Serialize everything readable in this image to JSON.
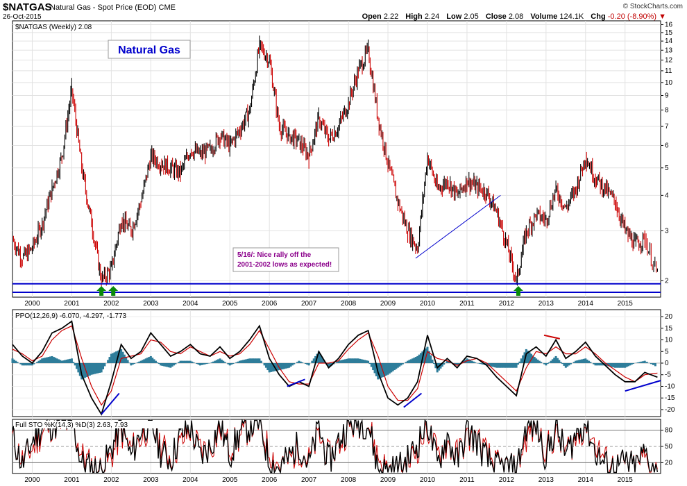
{
  "header": {
    "symbol": "$NATGAS",
    "description": "Natural Gas - Spot Price (EOD)",
    "exchange": "CME",
    "date": "26-Oct-2015",
    "brand": "© StockCharts.com",
    "open_label": "Open",
    "open": "2.22",
    "high_label": "High",
    "high": "2.24",
    "low_label": "Low",
    "low": "2.05",
    "close_label": "Close",
    "close": "2.08",
    "volume_label": "Volume",
    "volume": "124.1K",
    "chg_label": "Chg",
    "chg": "-0.20 (-8.90%)"
  },
  "colors": {
    "up": "#000000",
    "down": "#cc0000",
    "horizontal_lines": "#0000cc",
    "histogram": "#2e7d9a",
    "arrows": "#0a8a0a",
    "title_box": "#0000cc",
    "annotation": "#8b008b"
  },
  "chart_data": [
    {
      "type": "line",
      "panel": "price",
      "legend": "$NATGAS (Weekly) 2.08",
      "title_box": "Natural Gas",
      "annotation": "5/16/: Nice rally off the 2001-2002 lows as expected!",
      "y_scale": "log",
      "ylim": [
        1.75,
        16.5
      ],
      "y_ticks": [
        2,
        3,
        4,
        5,
        6,
        7,
        8,
        9,
        10,
        11,
        12,
        13,
        14,
        15,
        16
      ],
      "x_year_labels": [
        "2000",
        "2001",
        "2002",
        "2003",
        "2004",
        "2005",
        "2006",
        "2007",
        "2008",
        "2009",
        "2010",
        "2011",
        "2012",
        "2013",
        "2014",
        "2015"
      ],
      "horizontal_lines": [
        1.95,
        1.82
      ],
      "support_arrows": [
        2001.75,
        2002.05,
        2012.3
      ],
      "trendline": [
        [
          2009.7,
          2.4
        ],
        [
          2011.85,
          4.0
        ]
      ],
      "x": [
        1999.5,
        1999.75,
        2000.0,
        2000.25,
        2000.5,
        2000.75,
        2001.0,
        2001.25,
        2001.5,
        2001.75,
        2002.0,
        2002.25,
        2002.5,
        2002.75,
        2003.0,
        2003.25,
        2003.5,
        2003.75,
        2004.0,
        2004.25,
        2004.5,
        2004.75,
        2005.0,
        2005.25,
        2005.5,
        2005.75,
        2006.0,
        2006.25,
        2006.5,
        2006.75,
        2007.0,
        2007.25,
        2007.5,
        2007.75,
        2008.0,
        2008.25,
        2008.5,
        2008.75,
        2009.0,
        2009.25,
        2009.5,
        2009.75,
        2010.0,
        2010.25,
        2010.5,
        2010.75,
        2011.0,
        2011.25,
        2011.5,
        2011.75,
        2012.0,
        2012.25,
        2012.5,
        2012.75,
        2013.0,
        2013.25,
        2013.5,
        2013.75,
        2014.0,
        2014.25,
        2014.5,
        2014.75,
        2015.0,
        2015.25,
        2015.5,
        2015.82
      ],
      "close": [
        2.8,
        2.4,
        2.6,
        3.2,
        4.2,
        5.5,
        9.5,
        5.0,
        3.2,
        2.0,
        2.2,
        3.3,
        3.0,
        3.8,
        5.5,
        5.2,
        5.0,
        4.8,
        5.8,
        5.6,
        5.8,
        6.5,
        6.0,
        6.8,
        8.0,
        13.5,
        12.0,
        7.0,
        6.5,
        6.2,
        5.5,
        7.5,
        6.3,
        7.0,
        8.5,
        11.0,
        13.0,
        7.5,
        5.2,
        3.8,
        3.0,
        2.6,
        5.5,
        4.2,
        4.5,
        4.0,
        4.5,
        4.3,
        4.1,
        3.5,
        2.7,
        2.0,
        3.0,
        3.4,
        3.3,
        4.2,
        3.6,
        4.2,
        5.5,
        4.6,
        4.2,
        3.8,
        3.0,
        2.7,
        2.8,
        2.08
      ]
    },
    {
      "type": "line",
      "panel": "ppo",
      "legend": "PPO(12,26,9) -6.070, -4.297, -1.773",
      "legend_values": [
        "-6.070",
        "-4.297",
        "-1.773"
      ],
      "ylim": [
        -23,
        23
      ],
      "y_ticks": [
        20,
        15,
        10,
        5,
        0,
        -5,
        -10,
        -15,
        -20
      ],
      "x": [
        1999.5,
        1999.75,
        2000.0,
        2000.25,
        2000.5,
        2000.75,
        2001.0,
        2001.25,
        2001.5,
        2001.75,
        2002.0,
        2002.25,
        2002.5,
        2002.75,
        2003.0,
        2003.25,
        2003.5,
        2003.75,
        2004.0,
        2004.25,
        2004.5,
        2004.75,
        2005.0,
        2005.25,
        2005.5,
        2005.75,
        2006.0,
        2006.25,
        2006.5,
        2006.75,
        2007.0,
        2007.25,
        2007.5,
        2007.75,
        2008.0,
        2008.25,
        2008.5,
        2008.75,
        2009.0,
        2009.25,
        2009.5,
        2009.75,
        2010.0,
        2010.25,
        2010.5,
        2010.75,
        2011.0,
        2011.25,
        2011.5,
        2011.75,
        2012.0,
        2012.25,
        2012.5,
        2012.75,
        2013.0,
        2013.25,
        2013.5,
        2013.75,
        2014.0,
        2014.25,
        2014.5,
        2014.75,
        2015.0,
        2015.25,
        2015.5,
        2015.82
      ],
      "ppo": [
        8,
        3,
        0,
        5,
        13,
        15,
        18,
        -5,
        -15,
        -22,
        -8,
        8,
        2,
        5,
        13,
        8,
        3,
        5,
        8,
        4,
        3,
        7,
        2,
        5,
        10,
        16,
        2,
        -5,
        -10,
        -8,
        -10,
        5,
        -2,
        2,
        8,
        12,
        14,
        -4,
        -15,
        -18,
        -15,
        -8,
        12,
        -2,
        2,
        -2,
        3,
        2,
        -1,
        -6,
        -10,
        -14,
        4,
        7,
        3,
        10,
        2,
        5,
        9,
        3,
        -1,
        -5,
        -8,
        -8,
        -4,
        -6.07
      ],
      "signal": [
        6,
        4,
        1,
        3,
        10,
        14,
        16,
        2,
        -10,
        -18,
        -12,
        2,
        3,
        4,
        10,
        9,
        5,
        4,
        7,
        5,
        3,
        5,
        3,
        4,
        8,
        14,
        6,
        -2,
        -8,
        -9,
        -9,
        0,
        0,
        1,
        6,
        10,
        13,
        3,
        -10,
        -16,
        -16,
        -11,
        5,
        2,
        1,
        -1,
        1,
        2,
        0,
        -4,
        -8,
        -12,
        -2,
        5,
        4,
        7,
        4,
        4,
        7,
        4,
        0,
        -3,
        -6,
        -8,
        -5,
        -4.297
      ]
    },
    {
      "type": "line",
      "panel": "sto",
      "legend": "Full STO %K(14,3) %D(3) 2.63, 7.93",
      "legend_values": [
        "2.63",
        "7.93"
      ],
      "ylim": [
        0,
        100
      ],
      "y_ticks": [
        80,
        50,
        20
      ],
      "x": [
        1999.5,
        1999.75,
        2000.0,
        2000.25,
        2000.5,
        2000.75,
        2001.0,
        2001.25,
        2001.5,
        2001.75,
        2002.0,
        2002.25,
        2002.5,
        2002.75,
        2003.0,
        2003.25,
        2003.5,
        2003.75,
        2004.0,
        2004.25,
        2004.5,
        2004.75,
        2005.0,
        2005.25,
        2005.5,
        2005.75,
        2006.0,
        2006.25,
        2006.5,
        2006.75,
        2007.0,
        2007.25,
        2007.5,
        2007.75,
        2008.0,
        2008.25,
        2008.5,
        2008.75,
        2009.0,
        2009.25,
        2009.5,
        2009.75,
        2010.0,
        2010.25,
        2010.5,
        2010.75,
        2011.0,
        2011.25,
        2011.5,
        2011.75,
        2012.0,
        2012.25,
        2012.5,
        2012.75,
        2013.0,
        2013.25,
        2013.5,
        2013.75,
        2014.0,
        2014.25,
        2014.5,
        2014.75,
        2015.0,
        2015.25,
        2015.5,
        2015.82
      ],
      "k": [
        70,
        15,
        60,
        85,
        90,
        92,
        95,
        20,
        10,
        5,
        45,
        90,
        30,
        80,
        95,
        40,
        25,
        70,
        85,
        30,
        50,
        90,
        35,
        75,
        88,
        95,
        20,
        10,
        30,
        55,
        15,
        85,
        20,
        60,
        90,
        95,
        92,
        10,
        5,
        10,
        25,
        55,
        95,
        15,
        70,
        20,
        80,
        60,
        25,
        10,
        12,
        5,
        85,
        90,
        30,
        85,
        35,
        70,
        95,
        40,
        15,
        10,
        20,
        10,
        40,
        2.63
      ],
      "d": [
        65,
        25,
        45,
        75,
        88,
        90,
        93,
        35,
        15,
        8,
        30,
        75,
        45,
        65,
        90,
        55,
        30,
        55,
        80,
        45,
        45,
        80,
        50,
        65,
        85,
        93,
        40,
        15,
        25,
        45,
        25,
        70,
        30,
        50,
        85,
        93,
        93,
        30,
        8,
        8,
        18,
        45,
        85,
        35,
        55,
        35,
        65,
        65,
        35,
        15,
        10,
        8,
        65,
        88,
        45,
        70,
        45,
        60,
        90,
        55,
        25,
        12,
        18,
        12,
        30,
        7.93
      ]
    }
  ]
}
